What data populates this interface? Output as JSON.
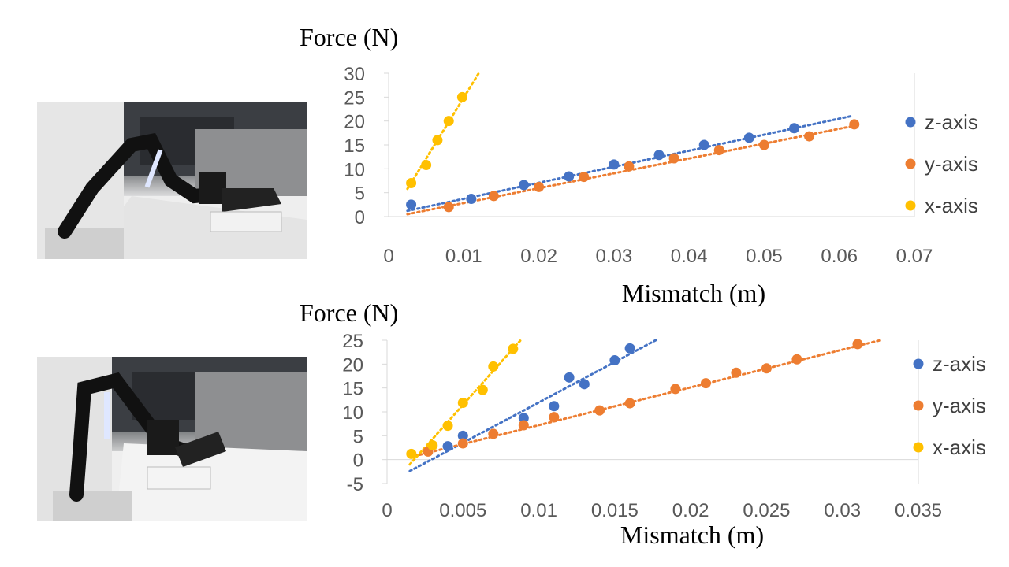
{
  "images": {
    "top_photo_name": "robot-arm-photo-top",
    "bottom_photo_name": "robot-arm-photo-bottom"
  },
  "colors": {
    "z": "#4472C4",
    "y": "#ED7D31",
    "x": "#FFC000",
    "axis": "#d9d9d9",
    "tick_text": "#595959"
  },
  "chart_data": [
    {
      "type": "scatter",
      "ylabel": "Force (N)",
      "xlabel": "Mismatch (m)",
      "xlim": [
        0,
        0.07
      ],
      "ylim": [
        0,
        30
      ],
      "xticks": [
        "0",
        "0.01",
        "0.02",
        "0.03",
        "0.04",
        "0.05",
        "0.06",
        "0.07"
      ],
      "yticks": [
        "0",
        "5",
        "10",
        "15",
        "20",
        "25",
        "30"
      ],
      "xtick_values": [
        0,
        0.01,
        0.02,
        0.03,
        0.04,
        0.05,
        0.06,
        0.07
      ],
      "ytick_values": [
        0,
        5,
        10,
        15,
        20,
        25,
        30
      ],
      "legend_position": "right",
      "trendline": "linear-dotted",
      "series": [
        {
          "name": "z-axis",
          "key": "z",
          "x": [
            0.003,
            0.011,
            0.018,
            0.024,
            0.03,
            0.036,
            0.042,
            0.048,
            0.054
          ],
          "y": [
            2.5,
            3.7,
            6.6,
            8.4,
            10.9,
            12.9,
            15.0,
            16.5,
            18.5
          ],
          "trend": [
            [
              0.0025,
              1.2
            ],
            [
              0.0615,
              21.0
            ]
          ]
        },
        {
          "name": "y-axis",
          "key": "y",
          "x": [
            0.008,
            0.014,
            0.02,
            0.026,
            0.032,
            0.038,
            0.044,
            0.05,
            0.056,
            0.062
          ],
          "y": [
            2.0,
            4.3,
            6.2,
            8.3,
            10.5,
            12.2,
            13.9,
            15.0,
            16.8,
            19.3
          ],
          "trend": [
            [
              0.0025,
              0.5
            ],
            [
              0.062,
              19.0
            ]
          ]
        },
        {
          "name": "x-axis",
          "key": "x",
          "x": [
            0.003,
            0.005,
            0.0065,
            0.008,
            0.0098
          ],
          "y": [
            7.0,
            10.8,
            16.0,
            20.0,
            25.0
          ],
          "trend": [
            [
              0.0025,
              5.8
            ],
            [
              0.012,
              30.0
            ]
          ]
        }
      ]
    },
    {
      "type": "scatter",
      "ylabel": "Force (N)",
      "xlabel": "Mismatch (m)",
      "xlim": [
        0,
        0.035
      ],
      "ylim": [
        -5,
        25
      ],
      "xticks": [
        "0",
        "0.005",
        "0.01",
        "0.015",
        "0.02",
        "0.025",
        "0.03",
        "0.035"
      ],
      "yticks": [
        "-5",
        "0",
        "5",
        "10",
        "15",
        "20",
        "25"
      ],
      "xtick_values": [
        0,
        0.005,
        0.01,
        0.015,
        0.02,
        0.025,
        0.03,
        0.035
      ],
      "ytick_values": [
        -5,
        0,
        5,
        10,
        15,
        20,
        25
      ],
      "legend_position": "right",
      "trendline": "linear-dotted",
      "series": [
        {
          "name": "z-axis",
          "key": "z",
          "x": [
            0.004,
            0.005,
            0.009,
            0.011,
            0.012,
            0.013,
            0.015,
            0.016
          ],
          "y": [
            2.8,
            5.0,
            8.7,
            11.2,
            17.2,
            15.8,
            20.8,
            23.3
          ],
          "trend": [
            [
              0.0015,
              -2.4
            ],
            [
              0.0177,
              25.0
            ]
          ]
        },
        {
          "name": "y-axis",
          "key": "y",
          "x": [
            0.0027,
            0.005,
            0.007,
            0.009,
            0.011,
            0.014,
            0.016,
            0.019,
            0.021,
            0.023,
            0.025,
            0.027,
            0.031
          ],
          "y": [
            1.7,
            3.4,
            5.4,
            7.2,
            8.9,
            10.3,
            11.8,
            14.8,
            16.0,
            18.2,
            19.1,
            21.0,
            24.2
          ],
          "trend": [
            [
              0.0015,
              0.5
            ],
            [
              0.0325,
              25.0
            ]
          ]
        },
        {
          "name": "x-axis",
          "key": "x",
          "x": [
            0.0016,
            0.003,
            0.004,
            0.005,
            0.0063,
            0.007,
            0.0083
          ],
          "y": [
            1.2,
            3.0,
            7.1,
            11.9,
            14.6,
            19.5,
            23.2
          ],
          "trend": [
            [
              0.0015,
              -1.0
            ],
            [
              0.0088,
              25.0
            ]
          ]
        }
      ]
    }
  ]
}
